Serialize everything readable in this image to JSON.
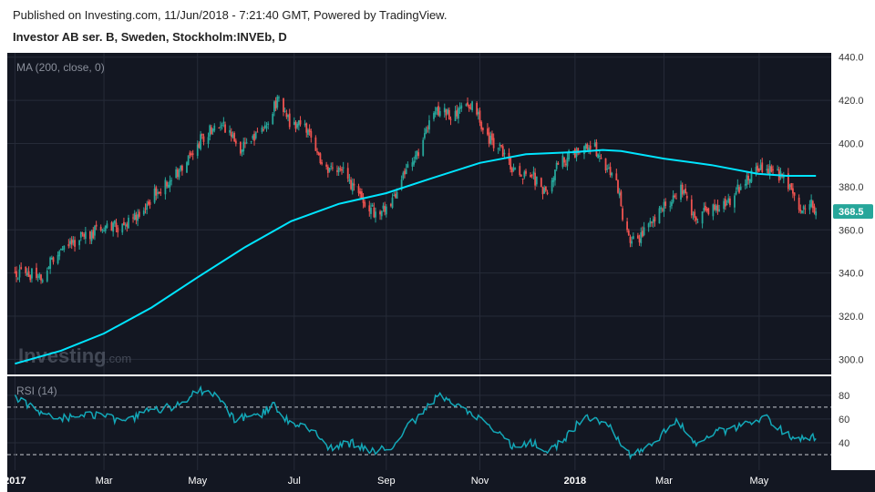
{
  "header": {
    "published": "Published on Investing.com, 11/Jun/2018 - 7:21:40 GMT, Powered by TradingView.",
    "symbol": "Investor AB ser. B, Sweden, Stockholm:INVEb, D"
  },
  "colors": {
    "background": "#131722",
    "up": "#26a69a",
    "down": "#ef5350",
    "ma": "#00e5ff",
    "rsi": "#13a8b8",
    "last_price_tag": "#26a69a"
  },
  "chart_data": {
    "type": "candlestick",
    "title": "Investor AB ser. B, Sweden, Stockholm:INVEb, D",
    "price_pane": {
      "indicator_label": "MA (200, close, 0)",
      "y_ticks": [
        300.0,
        320.0,
        340.0,
        360.0,
        380.0,
        400.0,
        420.0,
        440.0
      ],
      "y_tick_labels": [
        "300.0",
        "320.0",
        "340.0",
        "360.0",
        "380.0",
        "400.0",
        "420.0",
        "440.0"
      ],
      "ylim": [
        293,
        442
      ],
      "last_price": 368.5,
      "last_price_label": "368.5",
      "close_path": [
        [
          "2017-01-02",
          340
        ],
        [
          "2017-01-20",
          339
        ],
        [
          "2017-02-01",
          352
        ],
        [
          "2017-02-20",
          358
        ],
        [
          "2017-03-01",
          361
        ],
        [
          "2017-03-15",
          362
        ],
        [
          "2017-04-01",
          375
        ],
        [
          "2017-04-20",
          388
        ],
        [
          "2017-05-01",
          400
        ],
        [
          "2017-05-15",
          410
        ],
        [
          "2017-05-29",
          398
        ],
        [
          "2017-06-12",
          405
        ],
        [
          "2017-06-22",
          420
        ],
        [
          "2017-07-01",
          409
        ],
        [
          "2017-07-12",
          407
        ],
        [
          "2017-07-22",
          387
        ],
        [
          "2017-08-02",
          389
        ],
        [
          "2017-08-15",
          375
        ],
        [
          "2017-08-25",
          368
        ],
        [
          "2017-09-02",
          370
        ],
        [
          "2017-09-12",
          385
        ],
        [
          "2017-09-25",
          400
        ],
        [
          "2017-10-03",
          416
        ],
        [
          "2017-10-15",
          413
        ],
        [
          "2017-10-28",
          418
        ],
        [
          "2017-11-05",
          404
        ],
        [
          "2017-11-15",
          397
        ],
        [
          "2017-11-25",
          385
        ],
        [
          "2017-12-05",
          385
        ],
        [
          "2017-12-15",
          376
        ],
        [
          "2017-12-22",
          392
        ],
        [
          "2018-01-05",
          396
        ],
        [
          "2018-01-15",
          398
        ],
        [
          "2018-01-22",
          388
        ],
        [
          "2018-01-29",
          381
        ],
        [
          "2018-02-05",
          357
        ],
        [
          "2018-02-12",
          354
        ],
        [
          "2018-02-20",
          363
        ],
        [
          "2018-03-01",
          370
        ],
        [
          "2018-03-12",
          378
        ],
        [
          "2018-03-22",
          366
        ],
        [
          "2018-04-01",
          370
        ],
        [
          "2018-04-12",
          373
        ],
        [
          "2018-04-25",
          385
        ],
        [
          "2018-05-05",
          390
        ],
        [
          "2018-05-12",
          386
        ],
        [
          "2018-05-20",
          383
        ],
        [
          "2018-05-28",
          371
        ],
        [
          "2018-06-04",
          374
        ],
        [
          "2018-06-08",
          368.5
        ]
      ],
      "ma_200": [
        [
          "2017-01-02",
          298
        ],
        [
          "2017-02-01",
          304
        ],
        [
          "2017-03-01",
          312
        ],
        [
          "2017-04-01",
          324
        ],
        [
          "2017-05-01",
          338
        ],
        [
          "2017-06-01",
          352
        ],
        [
          "2017-07-01",
          364
        ],
        [
          "2017-08-01",
          372
        ],
        [
          "2017-09-01",
          377
        ],
        [
          "2017-10-01",
          384
        ],
        [
          "2017-11-01",
          391
        ],
        [
          "2017-12-01",
          395
        ],
        [
          "2018-01-01",
          396
        ],
        [
          "2018-01-20",
          397
        ],
        [
          "2018-02-01",
          396.5
        ],
        [
          "2018-03-01",
          393
        ],
        [
          "2018-04-01",
          390
        ],
        [
          "2018-05-01",
          386
        ],
        [
          "2018-05-20",
          385
        ],
        [
          "2018-06-08",
          385
        ]
      ]
    },
    "rsi_pane": {
      "indicator_label": "RSI (14)",
      "y_ticks": [
        40,
        60,
        80
      ],
      "y_tick_labels": [
        "40",
        "60",
        "80"
      ],
      "ylim": [
        17,
        96
      ],
      "levels": [
        30,
        70
      ],
      "rsi_path": [
        [
          "2017-01-02",
          78
        ],
        [
          "2017-01-15",
          68
        ],
        [
          "2017-02-01",
          60
        ],
        [
          "2017-02-15",
          65
        ],
        [
          "2017-03-01",
          62
        ],
        [
          "2017-03-15",
          58
        ],
        [
          "2017-04-01",
          68
        ],
        [
          "2017-04-15",
          70
        ],
        [
          "2017-05-01",
          84
        ],
        [
          "2017-05-12",
          80
        ],
        [
          "2017-05-25",
          60
        ],
        [
          "2017-06-10",
          63
        ],
        [
          "2017-06-20",
          72
        ],
        [
          "2017-07-01",
          55
        ],
        [
          "2017-07-15",
          52
        ],
        [
          "2017-07-25",
          35
        ],
        [
          "2017-08-10",
          40
        ],
        [
          "2017-08-25",
          32
        ],
        [
          "2017-09-05",
          38
        ],
        [
          "2017-09-15",
          55
        ],
        [
          "2017-09-25",
          65
        ],
        [
          "2017-10-05",
          80
        ],
        [
          "2017-10-15",
          72
        ],
        [
          "2017-10-25",
          66
        ],
        [
          "2017-11-05",
          55
        ],
        [
          "2017-11-15",
          45
        ],
        [
          "2017-11-25",
          35
        ],
        [
          "2017-12-05",
          40
        ],
        [
          "2017-12-15",
          32
        ],
        [
          "2017-12-25",
          42
        ],
        [
          "2018-01-05",
          58
        ],
        [
          "2018-01-15",
          62
        ],
        [
          "2018-01-25",
          52
        ],
        [
          "2018-02-06",
          30
        ],
        [
          "2018-02-15",
          36
        ],
        [
          "2018-02-25",
          44
        ],
        [
          "2018-03-10",
          58
        ],
        [
          "2018-03-22",
          40
        ],
        [
          "2018-04-01",
          48
        ],
        [
          "2018-04-15",
          52
        ],
        [
          "2018-04-25",
          58
        ],
        [
          "2018-05-05",
          62
        ],
        [
          "2018-05-15",
          52
        ],
        [
          "2018-05-25",
          43
        ],
        [
          "2018-06-04",
          45
        ],
        [
          "2018-06-08",
          43
        ]
      ]
    },
    "x_ticks": [
      {
        "date": "2017-01-02",
        "label": "2017",
        "bold": true
      },
      {
        "date": "2017-03-01",
        "label": "Mar",
        "bold": false
      },
      {
        "date": "2017-05-01",
        "label": "May",
        "bold": false
      },
      {
        "date": "2017-07-03",
        "label": "Jul",
        "bold": false
      },
      {
        "date": "2017-09-01",
        "label": "Sep",
        "bold": false
      },
      {
        "date": "2017-11-01",
        "label": "Nov",
        "bold": false
      },
      {
        "date": "2018-01-02",
        "label": "2018",
        "bold": true
      },
      {
        "date": "2018-03-01",
        "label": "Mar",
        "bold": false
      },
      {
        "date": "2018-05-02",
        "label": "May",
        "bold": false
      }
    ],
    "x_range": [
      "2016-12-28",
      "2018-06-18"
    ]
  },
  "watermark": {
    "text_main": "Investing",
    "text_suffix": ".com"
  }
}
